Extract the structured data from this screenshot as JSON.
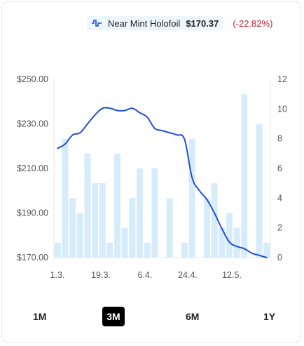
{
  "header": {
    "legend_label": "Near Mint Holofoil",
    "legend_price": "$170.37",
    "legend_change": "(-22.82%)"
  },
  "tabs": [
    {
      "label": "1M",
      "active": false
    },
    {
      "label": "3M",
      "active": true
    },
    {
      "label": "6M",
      "active": false
    },
    {
      "label": "1Y",
      "active": false
    }
  ],
  "colors": {
    "line": "#1f4ed8",
    "bar": "#d6ecfb",
    "change_negative": "#c1272d"
  },
  "chart_data": {
    "type": "bar",
    "x_ticks": [
      "1.3.",
      "19.3.",
      "6.4.",
      "24.4.",
      "12.5."
    ],
    "left_axis": {
      "ticks": [
        "$250.00",
        "$230.00",
        "$210.00",
        "$190.00",
        "$170.00"
      ],
      "min": 170,
      "max": 250
    },
    "right_axis": {
      "ticks": [
        "12",
        "10",
        "8",
        "6",
        "4",
        "2",
        "0"
      ],
      "min": 0,
      "max": 12
    },
    "bars": [
      1,
      8,
      4,
      3,
      7,
      5,
      5,
      1,
      7,
      2,
      4,
      6,
      1,
      6,
      0,
      4,
      0,
      1,
      8,
      0,
      4,
      5,
      2,
      3,
      2,
      11,
      0,
      9,
      1
    ],
    "line": [
      [
        0,
        219
      ],
      [
        1,
        221
      ],
      [
        2,
        225
      ],
      [
        3,
        226
      ],
      [
        4,
        230
      ],
      [
        5,
        234
      ],
      [
        6,
        237
      ],
      [
        7,
        237
      ],
      [
        8,
        236
      ],
      [
        9,
        236
      ],
      [
        10,
        237
      ],
      [
        11,
        235
      ],
      [
        12,
        233
      ],
      [
        13,
        228
      ],
      [
        14,
        227
      ],
      [
        15,
        226
      ],
      [
        16,
        225
      ],
      [
        17,
        223
      ],
      [
        18,
        206
      ],
      [
        19,
        200
      ],
      [
        20,
        196
      ],
      [
        21,
        190
      ],
      [
        22,
        183
      ],
      [
        23,
        177
      ],
      [
        24,
        175
      ],
      [
        25,
        174
      ],
      [
        26,
        172
      ],
      [
        27,
        171
      ],
      [
        28,
        170
      ]
    ]
  }
}
